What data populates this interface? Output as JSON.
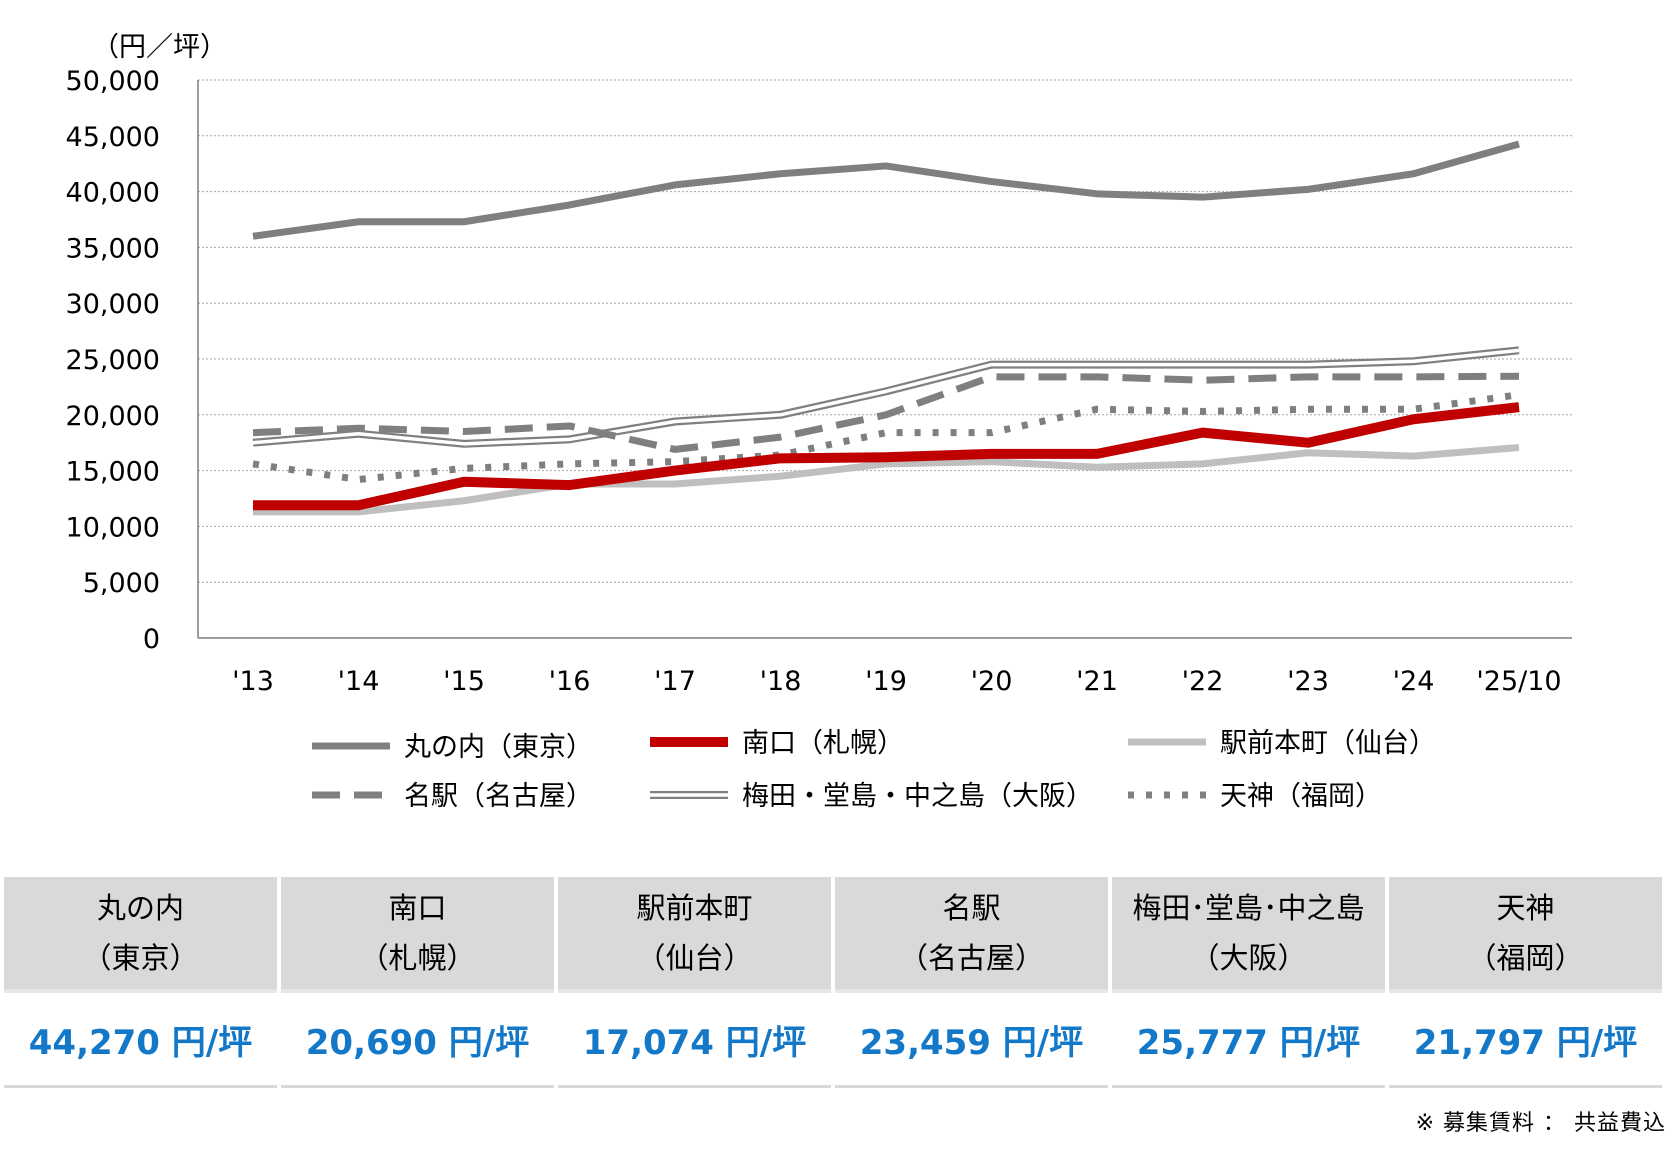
{
  "chart_data": {
    "type": "line",
    "title": "",
    "ylabel": "（円／坪）",
    "xlabel": "",
    "ylim": [
      0,
      50000
    ],
    "yticks": [
      0,
      5000,
      10000,
      15000,
      20000,
      25000,
      30000,
      35000,
      40000,
      45000,
      50000
    ],
    "ytick_labels": [
      "0",
      "5,000",
      "10,000",
      "15,000",
      "20,000",
      "25,000",
      "30,000",
      "35,000",
      "40,000",
      "45,000",
      "50,000"
    ],
    "categories": [
      "'13",
      "'14",
      "'15",
      "'16",
      "'17",
      "'18",
      "'19",
      "'20",
      "'21",
      "'22",
      "'23",
      "'24",
      "'25/10"
    ],
    "grid": true,
    "legend_position": "bottom",
    "series": [
      {
        "name": "丸の内（東京）",
        "color": "#7f7f7f",
        "style": "solid-thick",
        "values": [
          36000,
          37300,
          37300,
          38800,
          40600,
          41600,
          42300,
          40900,
          39800,
          39500,
          40200,
          41600,
          44270
        ]
      },
      {
        "name": "南口（札幌）",
        "color": "#c00000",
        "style": "solid-bold",
        "values": [
          11900,
          11900,
          14000,
          13700,
          15000,
          16100,
          16200,
          16500,
          16500,
          18400,
          17500,
          19600,
          20690
        ]
      },
      {
        "name": "駅前本町（仙台）",
        "color": "#bfbfbf",
        "style": "solid-thick",
        "values": [
          11300,
          11300,
          12300,
          13800,
          13800,
          14500,
          15600,
          15800,
          15300,
          15600,
          16600,
          16300,
          17074
        ]
      },
      {
        "name": "名駅（名古屋）",
        "color": "#7f7f7f",
        "style": "dashed",
        "values": [
          18400,
          18800,
          18500,
          19000,
          16900,
          18000,
          20000,
          23400,
          23400,
          23100,
          23400,
          23400,
          23459
        ]
      },
      {
        "name": "梅田・堂島・中之島（大阪）",
        "color": "#808080",
        "style": "double",
        "values": [
          17500,
          18300,
          17400,
          17800,
          19400,
          20000,
          22100,
          24500,
          24500,
          24500,
          24500,
          24800,
          25777
        ]
      },
      {
        "name": "天神（福岡）",
        "color": "#7f7f7f",
        "style": "dotted",
        "values": [
          15600,
          14200,
          15200,
          15600,
          15800,
          16400,
          18400,
          18400,
          20500,
          20300,
          20500,
          20500,
          21797
        ]
      }
    ]
  },
  "summary": {
    "columns": [
      {
        "name": "丸の内",
        "sub": "（東京）",
        "value": "44,270 円/坪"
      },
      {
        "name": "南口",
        "sub": "（札幌）",
        "value": "20,690 円/坪"
      },
      {
        "name": "駅前本町",
        "sub": "（仙台）",
        "value": "17,074 円/坪"
      },
      {
        "name": "名駅",
        "sub": "（名古屋）",
        "value": "23,459 円/坪"
      },
      {
        "name": "梅田･堂島･中之島",
        "sub": "（大阪）",
        "value": "25,777 円/坪"
      },
      {
        "name": "天神",
        "sub": "（福岡）",
        "value": "21,797 円/坪"
      }
    ]
  },
  "footnote": "※ 募集賃料 ： 共益費込"
}
